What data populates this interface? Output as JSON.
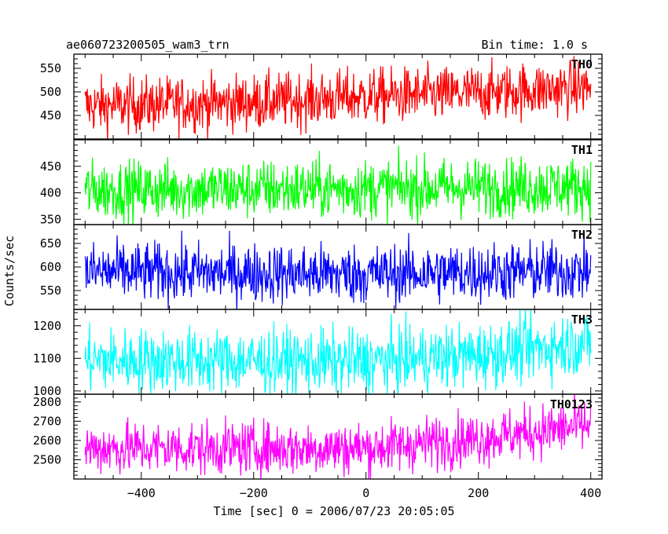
{
  "header": {
    "title": "ae060723200505_wam3_trn",
    "bin_time": "Bin time: 1.0 s"
  },
  "chart_data": {
    "type": "line",
    "title": "ae060723200505_wam3_trn",
    "subtitle": "Bin time: 1.0 s",
    "xlabel": "Time [sec] 0 = 2006/07/23 20:05:05",
    "ylabel": "Counts/sec",
    "xlim": [
      -520,
      420
    ],
    "x_ticks": [
      -400,
      -200,
      0,
      200,
      400
    ],
    "x_tick_labels": [
      "−400",
      "−200",
      "0",
      "200",
      "400"
    ],
    "x_range_data": [
      -500,
      400
    ],
    "grid": false,
    "panels": [
      {
        "name": "TH0",
        "color": "#ff0000",
        "ylim": [
          500,
          580
        ],
        "yticks": [
          500,
          550
        ],
        "ytick_labels": [
          "500",
          "550"
        ],
        "ylabel_ticks": [
          450,
          500,
          550
        ],
        "ylim_full": [
          400,
          580
        ],
        "baseline": [
          [
            -500,
            470
          ],
          [
            -200,
            478
          ],
          [
            0,
            490
          ],
          [
            150,
            495
          ],
          [
            400,
            510
          ]
        ],
        "noise": 30
      },
      {
        "name": "TH1",
        "color": "#00ff00",
        "ylim_full": [
          340,
          500
        ],
        "ylabel_ticks": [
          350,
          400,
          450
        ],
        "baseline": [
          [
            -500,
            405
          ],
          [
            0,
            408
          ],
          [
            400,
            412
          ]
        ],
        "noise": 28
      },
      {
        "name": "TH2",
        "color": "#0000ff",
        "ylim_full": [
          510,
          690
        ],
        "ylabel_ticks": [
          550,
          600,
          650
        ],
        "baseline": [
          [
            -500,
            590
          ],
          [
            0,
            585
          ],
          [
            400,
            592
          ]
        ],
        "noise": 32
      },
      {
        "name": "TH3",
        "color": "#00ffff",
        "ylim_full": [
          990,
          1250
        ],
        "ylabel_ticks": [
          1000,
          1100,
          1200
        ],
        "baseline": [
          [
            -500,
            1095
          ],
          [
            0,
            1090
          ],
          [
            200,
            1110
          ],
          [
            400,
            1150
          ]
        ],
        "noise": 50
      },
      {
        "name": "TH0123",
        "color": "#ff00ff",
        "ylim_full": [
          2400,
          2840
        ],
        "ylabel_ticks": [
          2500,
          2600,
          2700,
          2800
        ],
        "baseline": [
          [
            -500,
            2560
          ],
          [
            0,
            2560
          ],
          [
            200,
            2610
          ],
          [
            400,
            2680
          ]
        ],
        "noise": 70
      }
    ]
  }
}
